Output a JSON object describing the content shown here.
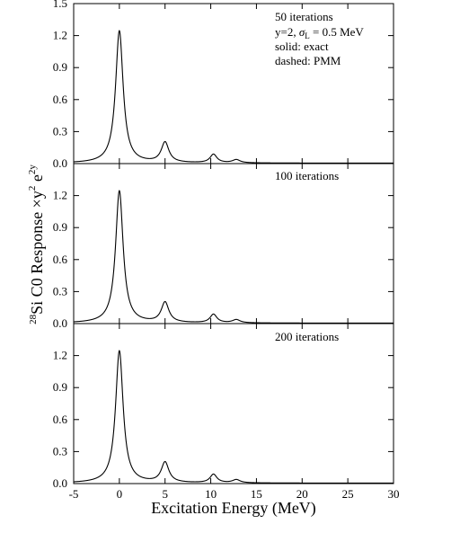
{
  "chart_data": [
    {
      "type": "line",
      "panel": "top",
      "ylim": [
        0.0,
        1.5
      ],
      "yticks": [
        "0.0",
        "0.3",
        "0.6",
        "0.9",
        "1.2",
        "1.5"
      ],
      "annotation": {
        "line1": "50 iterations",
        "line2_prefix": "y=2, ",
        "line2_sigma": "σ",
        "line2_sub": "L",
        "line2_suffix": " = 0.5 MeV",
        "line3": "solid: exact",
        "line4": "dashed: PMM"
      },
      "peaks": [
        {
          "x": 0.0,
          "y": 1.24
        },
        {
          "x": 5.0,
          "y": 0.19
        },
        {
          "x": 10.3,
          "y": 0.08
        },
        {
          "x": 12.8,
          "y": 0.03
        }
      ]
    },
    {
      "type": "line",
      "panel": "middle",
      "ylim": [
        0.0,
        1.5
      ],
      "yticks": [
        "0.0",
        "0.3",
        "0.6",
        "0.9",
        "1.2"
      ],
      "annotation": {
        "line1": "100 iterations"
      },
      "peaks": [
        {
          "x": 0.0,
          "y": 1.24
        },
        {
          "x": 5.0,
          "y": 0.19
        },
        {
          "x": 10.3,
          "y": 0.08
        },
        {
          "x": 12.8,
          "y": 0.03
        }
      ]
    },
    {
      "type": "line",
      "panel": "bottom",
      "ylim": [
        0.0,
        1.5
      ],
      "yticks": [
        "0.0",
        "0.3",
        "0.6",
        "0.9",
        "1.2"
      ],
      "annotation": {
        "line1": "200 iterations"
      },
      "peaks": [
        {
          "x": 0.0,
          "y": 1.24
        },
        {
          "x": 5.0,
          "y": 0.19
        },
        {
          "x": 10.3,
          "y": 0.08
        },
        {
          "x": 12.8,
          "y": 0.03
        }
      ]
    }
  ],
  "xaxis": {
    "xlim": [
      -5,
      30
    ],
    "ticks": [
      "-5",
      "0",
      "5",
      "10",
      "15",
      "20",
      "25",
      "30"
    ],
    "label": "Excitation Energy (MeV)"
  },
  "yaxis_label": {
    "iso_sup": "28",
    "main": "Si C0 Response ×y",
    "sq_sup": "2",
    "e_part": " e",
    "exp_sup": "2y"
  }
}
